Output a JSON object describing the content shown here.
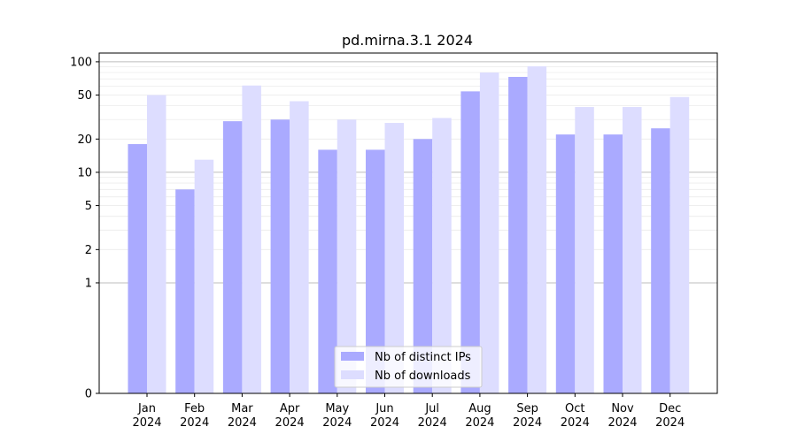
{
  "chart_data": {
    "type": "bar",
    "title": "pd.mirna.3.1 2024",
    "xlabel": "",
    "ylabel": "",
    "yscale": "symlog",
    "ylim": [
      0,
      120
    ],
    "y_ticks": [
      0,
      1,
      2,
      5,
      10,
      20,
      50,
      100
    ],
    "categories": [
      [
        "Jan",
        "2024"
      ],
      [
        "Feb",
        "2024"
      ],
      [
        "Mar",
        "2024"
      ],
      [
        "Apr",
        "2024"
      ],
      [
        "May",
        "2024"
      ],
      [
        "Jun",
        "2024"
      ],
      [
        "Jul",
        "2024"
      ],
      [
        "Aug",
        "2024"
      ],
      [
        "Sep",
        "2024"
      ],
      [
        "Oct",
        "2024"
      ],
      [
        "Nov",
        "2024"
      ],
      [
        "Dec",
        "2024"
      ]
    ],
    "series": [
      {
        "name": "Nb of distinct IPs",
        "color": "#aaaaff",
        "values": [
          18,
          7,
          29,
          30,
          16,
          16,
          20,
          54,
          73,
          22,
          22,
          25
        ]
      },
      {
        "name": "Nb of downloads",
        "color": "#ddddff",
        "values": [
          50,
          13,
          61,
          44,
          30,
          28,
          31,
          80,
          91,
          39,
          39,
          48
        ]
      }
    ],
    "grid": true,
    "legend_position": "lower-center"
  }
}
